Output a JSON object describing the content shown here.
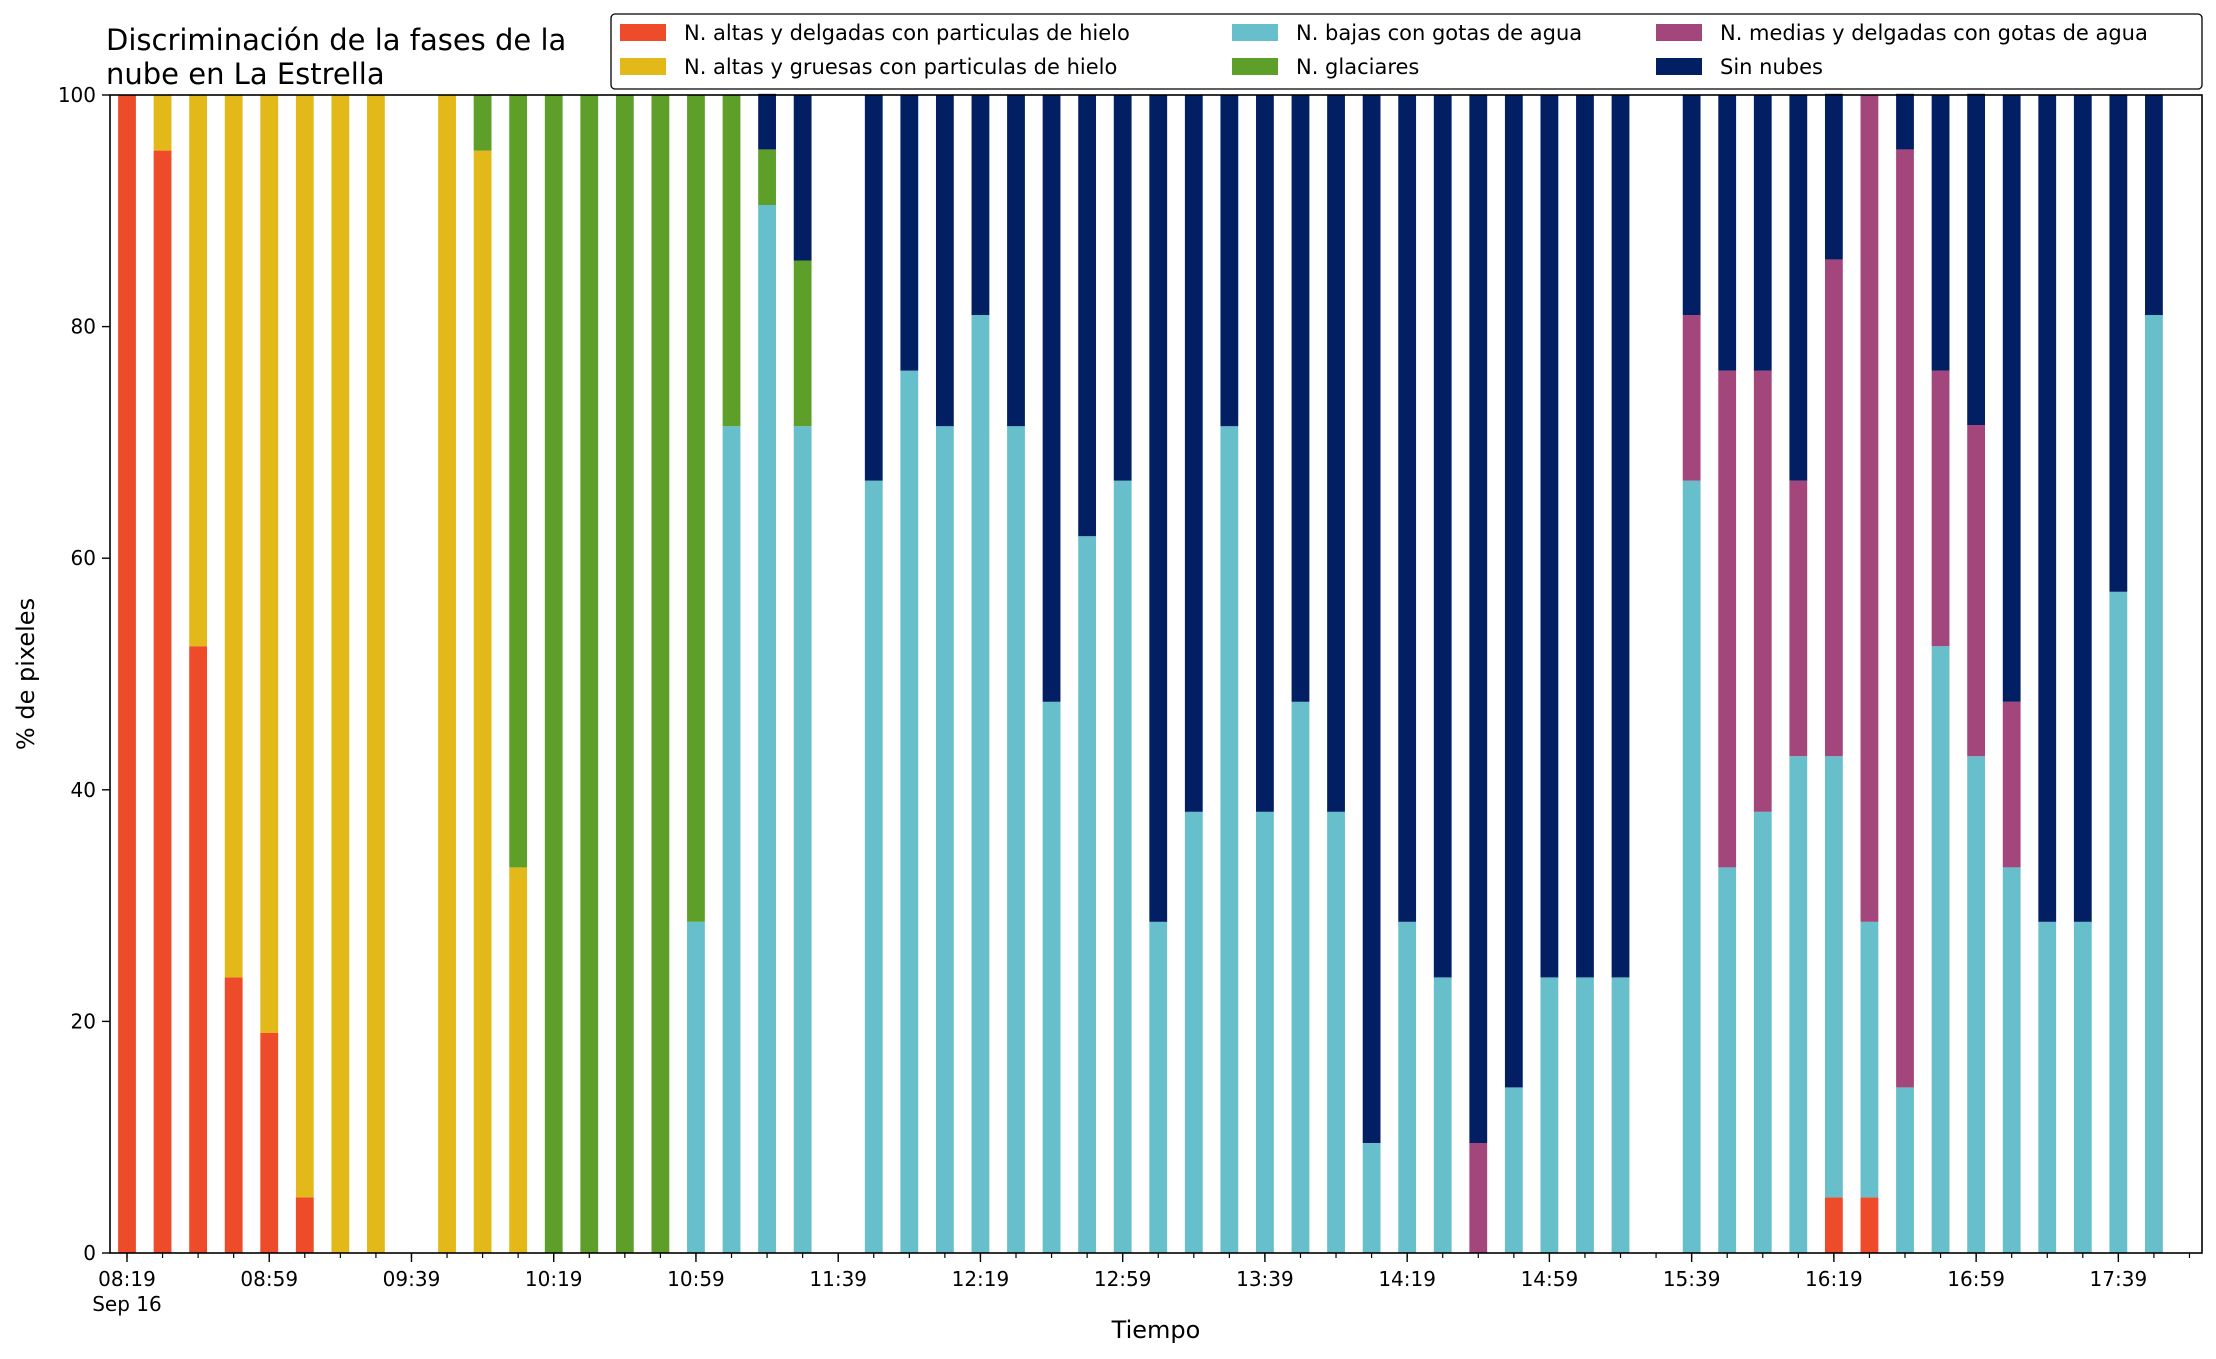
{
  "chart_data": {
    "type": "bar",
    "stacked": true,
    "title_lines": [
      "Discriminación de la fases de la",
      "nube en La Estrella"
    ],
    "xlabel": "Tiempo",
    "ylabel": "% de pixeles",
    "ylim": [
      0,
      100
    ],
    "yticks": [
      0,
      20,
      40,
      60,
      80,
      100
    ],
    "x_start": "08:19",
    "x_step_minutes": 5,
    "x_ticks": [
      "08:19",
      "08:59",
      "09:39",
      "10:19",
      "10:59",
      "11:39",
      "12:19",
      "12:59",
      "13:39",
      "14:19",
      "14:59",
      "15:39",
      "16:19",
      "16:59",
      "17:39"
    ],
    "x_date_label": "Sep 16",
    "legend_position": "top-right",
    "grid": false,
    "categories": [
      "08:19",
      "08:24",
      "08:29",
      "08:34",
      "08:39",
      "08:44",
      "08:49",
      "08:54",
      "08:59",
      "09:04",
      "09:09",
      "09:14",
      "09:19",
      "09:24",
      "09:29",
      "09:34",
      "09:39",
      "09:44",
      "09:49",
      "09:54",
      "09:59",
      "10:04",
      "10:09",
      "10:14",
      "10:19",
      "10:24",
      "10:29",
      "10:34",
      "10:39",
      "10:44",
      "10:49",
      "10:54",
      "10:59",
      "11:04",
      "11:09",
      "11:14",
      "11:19",
      "11:24",
      "11:29",
      "11:34",
      "11:39",
      "11:44",
      "11:49",
      "11:54",
      "11:59",
      "12:04",
      "12:09",
      "12:14",
      "12:19",
      "12:24",
      "12:29",
      "12:34",
      "12:39",
      "12:44",
      "12:49",
      "12:54",
      "12:59",
      "13:04",
      "13:09",
      "13:14",
      "13:19",
      "13:24",
      "13:29",
      "13:34",
      "13:39",
      "13:44",
      "13:49",
      "13:54",
      "13:59",
      "14:04",
      "14:09",
      "14:14",
      "14:19",
      "14:24",
      "14:29",
      "14:34",
      "14:39",
      "14:44",
      "14:49",
      "14:54",
      "14:59",
      "15:04",
      "15:09",
      "15:14",
      "15:19",
      "15:24",
      "15:29",
      "15:34",
      "15:39",
      "15:44",
      "15:49",
      "15:54",
      "15:59",
      "16:04",
      "16:09",
      "16:14",
      "16:19",
      "16:24",
      "16:29",
      "16:34",
      "16:39",
      "16:44",
      "16:49",
      "16:54",
      "16:59",
      "17:04",
      "17:09",
      "17:14",
      "17:19",
      "17:24",
      "17:29",
      "17:34",
      "17:39",
      "17:44"
    ],
    "series": [
      {
        "name": "N. altas y delgadas con particulas de hielo",
        "color": "#ee4b2b",
        "points": [
          [
            "08:19",
            100
          ],
          [
            "08:29",
            95.2
          ],
          [
            "08:39",
            52.4
          ],
          [
            "08:49",
            23.8
          ],
          [
            "08:59",
            19
          ],
          [
            "09:09",
            4.8
          ],
          [
            "16:19",
            4.8
          ],
          [
            "16:29",
            4.8
          ]
        ]
      },
      {
        "name": "N. altas y gruesas con particulas de hielo",
        "color": "#e3b919",
        "points": [
          [
            "08:29",
            4.8
          ],
          [
            "08:39",
            47.6
          ],
          [
            "08:49",
            76.2
          ],
          [
            "08:59",
            81
          ],
          [
            "09:09",
            95.2
          ],
          [
            "09:19",
            100
          ],
          [
            "09:29",
            100
          ],
          [
            "09:49",
            100
          ],
          [
            "09:59",
            95.2
          ],
          [
            "10:09",
            33.3
          ]
        ]
      },
      {
        "name": "N. bajas con gotas de agua",
        "color": "#66bfca",
        "points": [
          [
            "10:59",
            28.6
          ],
          [
            "11:09",
            71.4
          ],
          [
            "11:19",
            90.5
          ],
          [
            "11:29",
            71.4
          ],
          [
            "11:49",
            66.7
          ],
          [
            "11:59",
            76.2
          ],
          [
            "12:09",
            71.4
          ],
          [
            "12:19",
            81
          ],
          [
            "12:29",
            71.4
          ],
          [
            "12:39",
            47.6
          ],
          [
            "12:49",
            61.9
          ],
          [
            "12:59",
            66.7
          ],
          [
            "13:09",
            28.6
          ],
          [
            "13:19",
            38.1
          ],
          [
            "13:29",
            71.4
          ],
          [
            "13:39",
            38.1
          ],
          [
            "13:49",
            47.6
          ],
          [
            "13:59",
            38.1
          ],
          [
            "14:09",
            9.5
          ],
          [
            "14:19",
            28.6
          ],
          [
            "14:29",
            23.8
          ],
          [
            "14:49",
            14.3
          ],
          [
            "14:59",
            23.8
          ],
          [
            "15:09",
            23.8
          ],
          [
            "15:19",
            23.8
          ],
          [
            "15:39",
            66.7
          ],
          [
            "15:49",
            33.3
          ],
          [
            "15:59",
            38.1
          ],
          [
            "16:09",
            42.9
          ],
          [
            "16:19",
            38.1
          ],
          [
            "16:29",
            23.8
          ],
          [
            "16:39",
            14.3
          ],
          [
            "16:49",
            52.4
          ],
          [
            "16:59",
            42.9
          ],
          [
            "17:09",
            33.3
          ],
          [
            "17:19",
            28.6
          ],
          [
            "17:29",
            28.6
          ],
          [
            "17:39",
            57.1
          ],
          [
            "17:49",
            81
          ]
        ]
      },
      {
        "name": "N. glaciares",
        "color": "#5e9f2a",
        "points": [
          [
            "09:59",
            4.8
          ],
          [
            "10:09",
            66.7
          ],
          [
            "10:19",
            100
          ],
          [
            "10:29",
            100
          ],
          [
            "10:39",
            100
          ],
          [
            "10:49",
            100
          ],
          [
            "10:59",
            71.4
          ],
          [
            "11:09",
            28.6
          ],
          [
            "11:19",
            4.8
          ],
          [
            "11:29",
            14.3
          ]
        ]
      },
      {
        "name": "N. medias y delgadas con gotas de agua",
        "color": "#a3467b",
        "points": [
          [
            "14:39",
            9.5
          ],
          [
            "15:39",
            14.3
          ],
          [
            "15:49",
            42.9
          ],
          [
            "15:59",
            38.1
          ],
          [
            "16:09",
            23.8
          ],
          [
            "16:19",
            42.9
          ],
          [
            "16:29",
            71.4
          ],
          [
            "16:39",
            81
          ],
          [
            "16:49",
            23.8
          ],
          [
            "16:59",
            28.6
          ],
          [
            "17:09",
            14.3
          ]
        ]
      },
      {
        "name": "Sin nubes",
        "color": "#021f63",
        "points": [
          [
            "11:19",
            4.8
          ],
          [
            "11:29",
            14.3
          ],
          [
            "11:49",
            33.3
          ],
          [
            "11:59",
            23.8
          ],
          [
            "12:09",
            28.6
          ],
          [
            "12:19",
            19
          ],
          [
            "12:29",
            28.6
          ],
          [
            "12:39",
            52.4
          ],
          [
            "12:49",
            38.1
          ],
          [
            "12:59",
            33.3
          ],
          [
            "13:09",
            71.4
          ],
          [
            "13:19",
            61.9
          ],
          [
            "13:29",
            28.6
          ],
          [
            "13:39",
            61.9
          ],
          [
            "13:49",
            52.4
          ],
          [
            "13:59",
            61.9
          ],
          [
            "14:09",
            90.5
          ],
          [
            "14:19",
            71.4
          ],
          [
            "14:29",
            76.2
          ],
          [
            "14:39",
            90.5
          ],
          [
            "14:49",
            85.7
          ],
          [
            "14:59",
            76.2
          ],
          [
            "15:09",
            76.2
          ],
          [
            "15:19",
            76.2
          ],
          [
            "15:39",
            19
          ],
          [
            "15:49",
            23.8
          ],
          [
            "15:59",
            23.8
          ],
          [
            "16:09",
            33.3
          ],
          [
            "16:19",
            14.3
          ],
          [
            "16:39",
            4.8
          ],
          [
            "16:49",
            23.8
          ],
          [
            "16:59",
            28.6
          ],
          [
            "17:09",
            52.4
          ],
          [
            "17:19",
            71.4
          ],
          [
            "17:29",
            71.4
          ],
          [
            "17:39",
            42.9
          ],
          [
            "17:49",
            19
          ]
        ]
      }
    ],
    "legend_order": [
      0,
      1,
      2,
      3,
      4,
      5
    ]
  }
}
